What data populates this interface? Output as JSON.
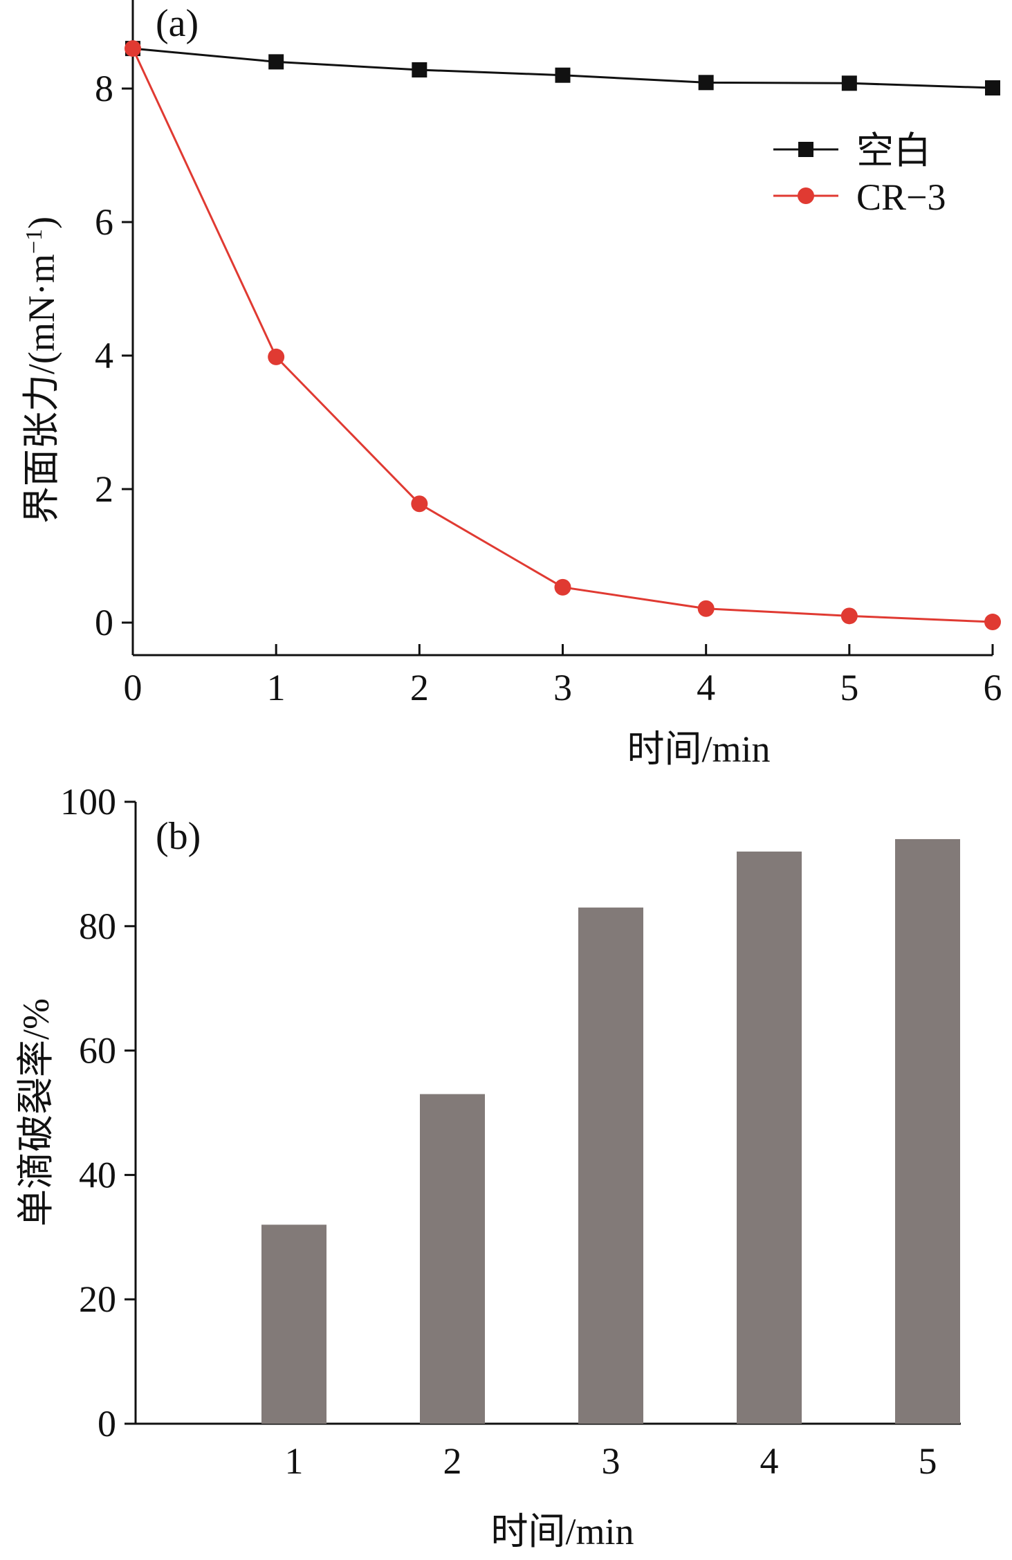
{
  "chart_data": [
    {
      "panel": "(a)",
      "type": "line",
      "title": "",
      "xlabel": "时间/min",
      "ylabel": "界面张力/(mN·m",
      "ylabel_superscript": "−1",
      "ylabel_close": ")",
      "x": [
        0,
        1,
        2,
        3,
        4,
        5,
        6
      ],
      "x_ticks": [
        "0",
        "1",
        "2",
        "3",
        "4",
        "5",
        "6"
      ],
      "y_ticks": [
        "0",
        "2",
        "4",
        "6",
        "8"
      ],
      "xlim": [
        0,
        6
      ],
      "ylim": [
        -0.5,
        8.8
      ],
      "grid": false,
      "legend_position": "top-right",
      "series": [
        {
          "name": "空白",
          "color": "#111111",
          "marker": "square",
          "values": [
            8.6,
            8.4,
            8.28,
            8.2,
            8.09,
            8.08,
            8.01
          ]
        },
        {
          "name": "CR−3",
          "color": "#e03a32",
          "marker": "circle",
          "values": [
            8.6,
            3.98,
            1.78,
            0.53,
            0.21,
            0.1,
            0.01
          ]
        }
      ]
    },
    {
      "panel": "(b)",
      "type": "bar",
      "title": "",
      "xlabel": "时间/min",
      "ylabel": "单滴破裂率/%",
      "categories": [
        "1",
        "2",
        "3",
        "4",
        "5"
      ],
      "values": [
        32,
        53,
        83,
        92,
        94
      ],
      "y_ticks": [
        "0",
        "20",
        "40",
        "60",
        "80",
        "100"
      ],
      "ylim": [
        0,
        100
      ],
      "bar_color": "#827a78",
      "grid": false
    }
  ]
}
